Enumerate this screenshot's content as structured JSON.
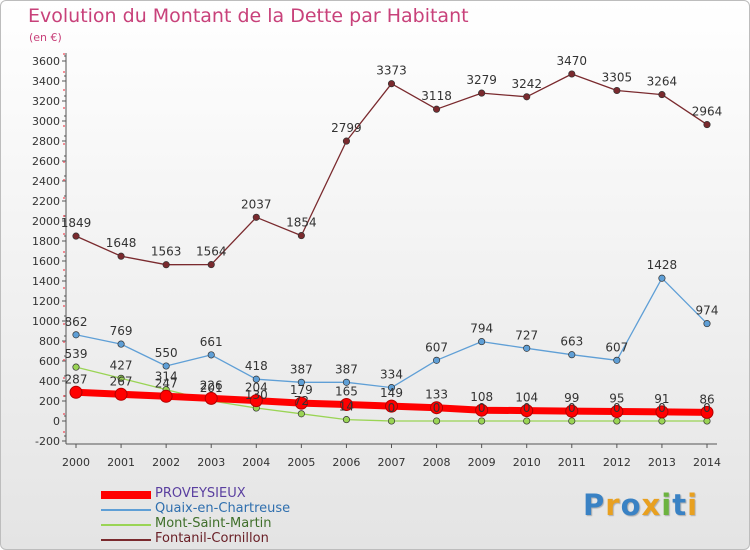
{
  "chart_data": {
    "type": "line",
    "title": "Evolution du Montant de la Dette par Habitant",
    "subtitle": "(en €)",
    "x": [
      "2000",
      "2001",
      "2002",
      "2003",
      "2004",
      "2005",
      "2006",
      "2007",
      "2008",
      "2009",
      "2010",
      "2011",
      "2012",
      "2013",
      "2014"
    ],
    "yticks": [
      -200,
      0,
      200,
      400,
      600,
      800,
      1000,
      1200,
      1400,
      1600,
      1800,
      2000,
      2200,
      2400,
      2600,
      2800,
      3000,
      3200,
      3400,
      3600
    ],
    "ylim": [
      -200,
      3600
    ],
    "grid": false,
    "legend_position": "bottom-left",
    "series": [
      {
        "name": "PROVEYSIEUX",
        "color": "#ff0000",
        "values": [
          287,
          267,
          247,
          226,
          204,
          179,
          165,
          149,
          133,
          108,
          104,
          99,
          95,
          91,
          86
        ],
        "labels": [
          "287",
          "267",
          "247",
          "226",
          "204",
          "179",
          "165",
          "149",
          "133",
          "108",
          "104",
          "99",
          "95",
          "91",
          "86"
        ]
      },
      {
        "name": "Quaix-en-Chartreuse",
        "color": "#5f9fd6",
        "values": [
          862,
          769,
          550,
          661,
          418,
          387,
          387,
          334,
          607,
          794,
          727,
          663,
          607,
          1428,
          974
        ],
        "labels": [
          "862",
          "769",
          "550",
          "661",
          "418",
          "387",
          "387",
          "334",
          "607",
          "794",
          "727",
          "663",
          "607",
          "1428",
          "974"
        ]
      },
      {
        "name": "Mont-Saint-Martin",
        "color": "#9ad455",
        "values": [
          539,
          427,
          314,
          201,
          130,
          72,
          14,
          0,
          0,
          0,
          0,
          0,
          0,
          0,
          0
        ],
        "labels": [
          "539",
          "427",
          "314",
          "201",
          "130",
          "72",
          "14",
          "0",
          "0",
          "0",
          "0",
          "0",
          "0",
          "0",
          "0"
        ]
      },
      {
        "name": "Fontanil-Cornillon",
        "color": "#7a2a2e",
        "values": [
          1849,
          1648,
          1563,
          1564,
          2037,
          1854,
          2799,
          3373,
          3118,
          3279,
          3242,
          3470,
          3305,
          3264,
          2964
        ],
        "labels": [
          "1849",
          "1648",
          "1563",
          "1564",
          "2037",
          "1854",
          "2799",
          "3373",
          "3118",
          "3279",
          "3242",
          "3470",
          "3305",
          "3264",
          "2964"
        ]
      }
    ]
  },
  "logo": {
    "letters": [
      "P",
      "r",
      "o",
      "x",
      "i",
      "t",
      "i"
    ],
    "colors": [
      "#3a82c4",
      "#e8a020",
      "#3a82c4",
      "#e8a020",
      "#6cb33f",
      "#3a82c4",
      "#e8a020"
    ]
  }
}
